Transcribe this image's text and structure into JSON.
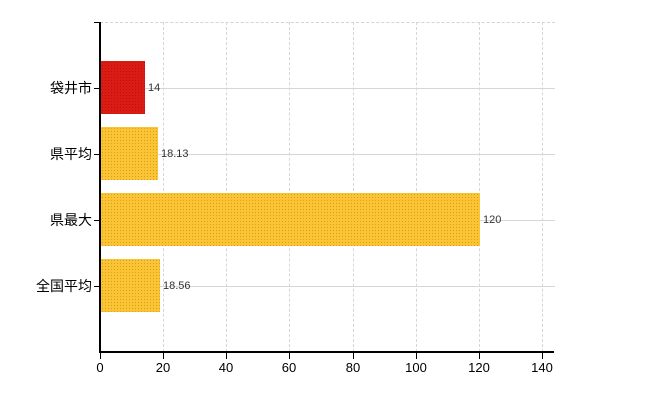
{
  "chart_data": {
    "type": "bar",
    "orientation": "horizontal",
    "title": "",
    "categories": [
      "袋井市",
      "県平均",
      "県最大",
      "全国平均"
    ],
    "values": [
      14,
      18.13,
      120,
      18.56
    ],
    "value_labels": [
      "14",
      "18.13",
      "120",
      "18.56"
    ],
    "bar_colors": [
      "#DC1B15",
      "#FCC433",
      "#FCC433",
      "#FCC433"
    ],
    "x_ticks": [
      {
        "value": 0,
        "label": "0"
      },
      {
        "value": 20,
        "label": "20"
      },
      {
        "value": 40,
        "label": "40"
      },
      {
        "value": 60,
        "label": "60"
      },
      {
        "value": 80,
        "label": "80"
      },
      {
        "value": 100,
        "label": "100"
      },
      {
        "value": 120,
        "label": "120"
      },
      {
        "value": 140,
        "label": "140"
      }
    ],
    "xlim": [
      0,
      144
    ],
    "grid": true,
    "legend_position": "none"
  },
  "colors": {
    "background": "#FFFFFF",
    "bar_red": "#DC1B15",
    "bar_yellow": "#FCC433",
    "gridline": "#D6D6D6",
    "axis": "#000000",
    "category_text": "#000000",
    "value_text": "#333333",
    "tick_text": "#000000"
  }
}
